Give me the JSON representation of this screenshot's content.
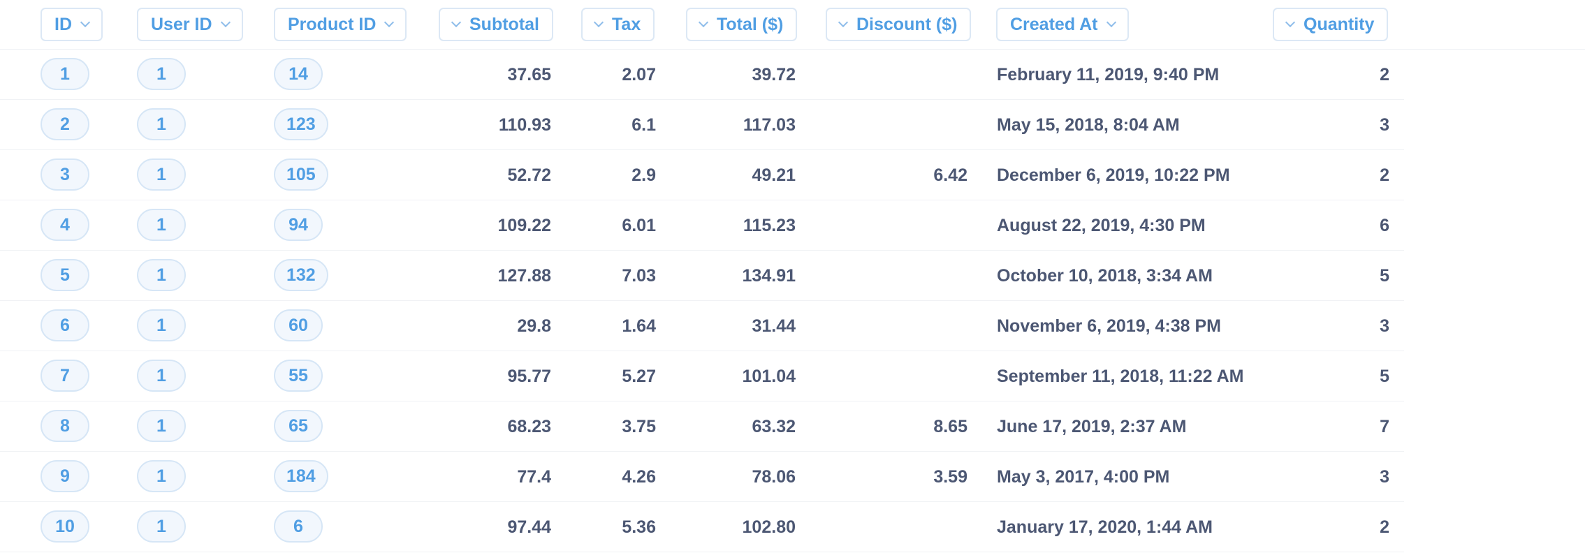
{
  "columns": [
    {
      "label": "ID"
    },
    {
      "label": "User ID"
    },
    {
      "label": "Product ID"
    },
    {
      "label": "Subtotal"
    },
    {
      "label": "Tax"
    },
    {
      "label": "Total ($)"
    },
    {
      "label": "Discount ($)"
    },
    {
      "label": "Created At"
    },
    {
      "label": "Quantity"
    }
  ],
  "rows": [
    {
      "id": "1",
      "user_id": "1",
      "product_id": "14",
      "subtotal": "37.65",
      "tax": "2.07",
      "total": "39.72",
      "discount": "",
      "created_at": "February 11, 2019, 9:40 PM",
      "quantity": "2"
    },
    {
      "id": "2",
      "user_id": "1",
      "product_id": "123",
      "subtotal": "110.93",
      "tax": "6.1",
      "total": "117.03",
      "discount": "",
      "created_at": "May 15, 2018, 8:04 AM",
      "quantity": "3"
    },
    {
      "id": "3",
      "user_id": "1",
      "product_id": "105",
      "subtotal": "52.72",
      "tax": "2.9",
      "total": "49.21",
      "discount": "6.42",
      "created_at": "December 6, 2019, 10:22 PM",
      "quantity": "2"
    },
    {
      "id": "4",
      "user_id": "1",
      "product_id": "94",
      "subtotal": "109.22",
      "tax": "6.01",
      "total": "115.23",
      "discount": "",
      "created_at": "August 22, 2019, 4:30 PM",
      "quantity": "6"
    },
    {
      "id": "5",
      "user_id": "1",
      "product_id": "132",
      "subtotal": "127.88",
      "tax": "7.03",
      "total": "134.91",
      "discount": "",
      "created_at": "October 10, 2018, 3:34 AM",
      "quantity": "5"
    },
    {
      "id": "6",
      "user_id": "1",
      "product_id": "60",
      "subtotal": "29.8",
      "tax": "1.64",
      "total": "31.44",
      "discount": "",
      "created_at": "November 6, 2019, 4:38 PM",
      "quantity": "3"
    },
    {
      "id": "7",
      "user_id": "1",
      "product_id": "55",
      "subtotal": "95.77",
      "tax": "5.27",
      "total": "101.04",
      "discount": "",
      "created_at": "September 11, 2018, 11:22 AM",
      "quantity": "5"
    },
    {
      "id": "8",
      "user_id": "1",
      "product_id": "65",
      "subtotal": "68.23",
      "tax": "3.75",
      "total": "63.32",
      "discount": "8.65",
      "created_at": "June 17, 2019, 2:37 AM",
      "quantity": "7"
    },
    {
      "id": "9",
      "user_id": "1",
      "product_id": "184",
      "subtotal": "77.4",
      "tax": "4.26",
      "total": "78.06",
      "discount": "3.59",
      "created_at": "May 3, 2017, 4:00 PM",
      "quantity": "3"
    },
    {
      "id": "10",
      "user_id": "1",
      "product_id": "6",
      "subtotal": "97.44",
      "tax": "5.36",
      "total": "102.80",
      "discount": "",
      "created_at": "January 17, 2020, 1:44 AM",
      "quantity": "2"
    }
  ],
  "colors": {
    "accent": "#509ee3",
    "text": "#4c5773",
    "pill_border": "#d6e6f6",
    "pill_bg": "#f2f7fd"
  },
  "icons": {
    "sort_chevron": "chevron-down-icon"
  }
}
